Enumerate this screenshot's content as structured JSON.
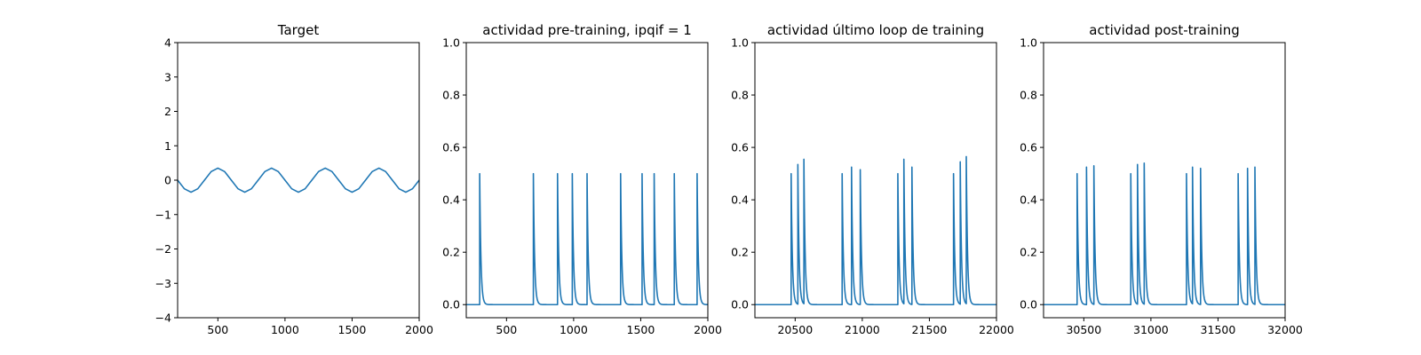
{
  "chart_data": [
    {
      "type": "line",
      "title": "Target",
      "xlim": [
        200,
        2000
      ],
      "ylim": [
        -4,
        4
      ],
      "xticks": [
        500,
        1000,
        1500,
        2000
      ],
      "xtick_labels": [
        "500",
        "1000",
        "1500",
        "2000"
      ],
      "yticks": [
        -4,
        -3,
        -2,
        -1,
        0,
        1,
        2,
        3,
        4
      ],
      "ytick_labels": [
        "−4",
        "−3",
        "−2",
        "−1",
        "0",
        "1",
        "2",
        "3",
        "4"
      ],
      "grid": false,
      "series": [
        {
          "color": "#1f77b4",
          "x": [
            200,
            250,
            300,
            350,
            400,
            450,
            500,
            550,
            600,
            650,
            700,
            750,
            800,
            850,
            900,
            950,
            1000,
            1050,
            1100,
            1150,
            1200,
            1250,
            1300,
            1350,
            1400,
            1450,
            1500,
            1550,
            1600,
            1650,
            1700,
            1750,
            1800,
            1850,
            1900,
            1950,
            2000
          ],
          "y": [
            0.0,
            -0.25,
            -0.35,
            -0.25,
            0.0,
            0.25,
            0.35,
            0.25,
            0.0,
            -0.25,
            -0.35,
            -0.25,
            0.0,
            0.25,
            0.35,
            0.25,
            0.0,
            -0.25,
            -0.35,
            -0.25,
            0.0,
            0.25,
            0.35,
            0.25,
            0.0,
            -0.25,
            -0.35,
            -0.25,
            0.0,
            0.25,
            0.35,
            0.25,
            0.0,
            -0.25,
            -0.35,
            -0.25,
            0.0
          ]
        }
      ]
    },
    {
      "type": "line",
      "title": "actividad pre-training, ipqif = 1",
      "xlim": [
        200,
        2000
      ],
      "ylim": [
        -0.05,
        1.0
      ],
      "xticks": [
        500,
        1000,
        1500,
        2000
      ],
      "xtick_labels": [
        "500",
        "1000",
        "1500",
        "2000"
      ],
      "yticks": [
        0.0,
        0.2,
        0.4,
        0.6,
        0.8,
        1.0
      ],
      "ytick_labels": [
        "0.0",
        "0.2",
        "0.4",
        "0.6",
        "0.8",
        "1.0"
      ],
      "grid": false,
      "series": [
        {
          "color": "#1f77b4",
          "spike_times": [
            300,
            700,
            880,
            990,
            1100,
            1350,
            1510,
            1600,
            1750,
            1920
          ],
          "spike_peaks": [
            0.5,
            0.5,
            0.5,
            0.5,
            0.5,
            0.5,
            0.5,
            0.5,
            0.5,
            0.5
          ],
          "baseline": 0.0
        }
      ]
    },
    {
      "type": "line",
      "title": "actividad último loop de training",
      "xlim": [
        20200,
        22000
      ],
      "ylim": [
        -0.05,
        1.0
      ],
      "xticks": [
        20500,
        21000,
        21500,
        22000
      ],
      "xtick_labels": [
        "20500",
        "21000",
        "21500",
        "22000"
      ],
      "yticks": [
        0.0,
        0.2,
        0.4,
        0.6,
        0.8,
        1.0
      ],
      "ytick_labels": [
        "0.0",
        "0.2",
        "0.4",
        "0.6",
        "0.8",
        "1.0"
      ],
      "grid": false,
      "series": [
        {
          "color": "#1f77b4",
          "spike_times": [
            20470,
            20520,
            20565,
            20850,
            20920,
            20985,
            21265,
            21310,
            21370,
            21680,
            21730,
            21775
          ],
          "spike_peaks": [
            0.5,
            0.535,
            0.555,
            0.5,
            0.525,
            0.515,
            0.5,
            0.555,
            0.525,
            0.5,
            0.545,
            0.565
          ],
          "baseline": 0.0
        }
      ]
    },
    {
      "type": "line",
      "title": "actividad post-training",
      "xlim": [
        30200,
        32000
      ],
      "ylim": [
        -0.05,
        1.0
      ],
      "xticks": [
        30500,
        31000,
        31500,
        32000
      ],
      "xtick_labels": [
        "30500",
        "31000",
        "31500",
        "32000"
      ],
      "yticks": [
        0.0,
        0.2,
        0.4,
        0.6,
        0.8,
        1.0
      ],
      "ytick_labels": [
        "0.0",
        "0.2",
        "0.4",
        "0.6",
        "0.8",
        "1.0"
      ],
      "grid": false,
      "series": [
        {
          "color": "#1f77b4",
          "spike_times": [
            30450,
            30520,
            30575,
            30850,
            30900,
            30950,
            31265,
            31310,
            31370,
            31650,
            31720,
            31775
          ],
          "spike_peaks": [
            0.5,
            0.525,
            0.53,
            0.5,
            0.535,
            0.54,
            0.5,
            0.525,
            0.52,
            0.5,
            0.52,
            0.525
          ],
          "baseline": 0.0
        }
      ]
    }
  ]
}
